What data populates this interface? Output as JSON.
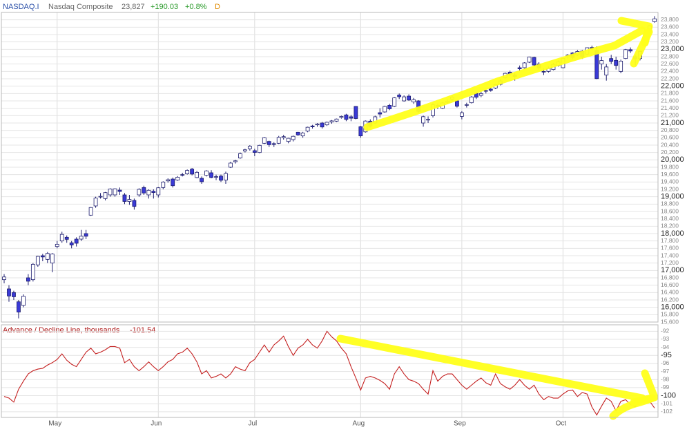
{
  "header": {
    "symbol": "NASDAQ.I",
    "name": "Nasdaq Composite",
    "last": "23,827",
    "change": "+190.03",
    "change_pct": "+0.8%",
    "period": "D"
  },
  "chart_data": [
    {
      "type": "candlestick",
      "up_color": "#ffffff",
      "down_color": "#3a3ad6",
      "edge_color": "#1c1c6e",
      "categories": [
        null,
        null,
        null,
        null,
        null,
        null,
        null,
        null,
        null,
        null,
        null,
        "May",
        null,
        null,
        null,
        null,
        null,
        null,
        null,
        null,
        null,
        null,
        null,
        null,
        null,
        null,
        null,
        null,
        null,
        null,
        null,
        null,
        "Jun",
        null,
        null,
        null,
        null,
        null,
        null,
        null,
        null,
        null,
        null,
        null,
        null,
        null,
        null,
        null,
        null,
        null,
        null,
        null,
        "Jul",
        null,
        null,
        null,
        null,
        null,
        null,
        null,
        null,
        null,
        null,
        null,
        null,
        null,
        null,
        null,
        null,
        null,
        null,
        null,
        null,
        null,
        "Aug",
        null,
        null,
        null,
        null,
        null,
        null,
        null,
        null,
        null,
        null,
        null,
        null,
        null,
        null,
        null,
        null,
        null,
        null,
        null,
        null,
        "Sep",
        null,
        null,
        null,
        null,
        null,
        null,
        null,
        null,
        null,
        null,
        null,
        null,
        null,
        null,
        null,
        null,
        null,
        null,
        null,
        null,
        "Oct",
        null,
        null,
        null,
        null,
        null,
        null,
        null,
        null,
        null,
        null,
        null,
        null,
        null,
        null,
        null,
        null,
        null,
        null,
        null
      ],
      "open": [
        16750,
        16500,
        16400,
        16150,
        16050,
        16800,
        16750,
        17150,
        17400,
        17300,
        17200,
        17650,
        17800,
        17900,
        17750,
        17850,
        17850,
        18000,
        18500,
        18750,
        19000,
        18950,
        19050,
        19050,
        19180,
        19050,
        18870,
        18900,
        19050,
        19250,
        19050,
        19150,
        19050,
        19250,
        19430,
        19480,
        19450,
        19600,
        19620,
        19750,
        19520,
        19500,
        19580,
        19650,
        19540,
        19560,
        19450,
        19800,
        19950,
        20050,
        20240,
        20300,
        20250,
        20200,
        20450,
        20500,
        20440,
        20450,
        20600,
        20500,
        20550,
        20750,
        20650,
        20780,
        20920,
        20950,
        21000,
        20950,
        21030,
        21050,
        21150,
        21220,
        21170,
        21450,
        20900,
        20760,
        21050,
        21000,
        21280,
        21300,
        21480,
        21450,
        21760,
        21600,
        21730,
        21570,
        21600,
        21000,
        21080,
        21200,
        21480,
        21400,
        21560,
        21650,
        21600,
        21180,
        21480,
        21550,
        21800,
        21750,
        21880,
        21920,
        21950,
        22050,
        22230,
        22380,
        22300,
        22500,
        22500,
        22650,
        22780,
        22600,
        22400,
        22400,
        22450,
        22560,
        22500,
        22800,
        22900,
        22850,
        22950,
        22870,
        23050,
        22970,
        22600,
        22300,
        22750,
        22700,
        22400,
        22750,
        22990,
        22800,
        22750,
        23150,
        23500,
        23750
      ],
      "high": [
        16900,
        16600,
        16450,
        16200,
        16350,
        16900,
        17200,
        17400,
        17450,
        17500,
        17470,
        17800,
        18050,
        17950,
        17800,
        17900,
        18100,
        18100,
        18720,
        19000,
        19100,
        19130,
        19230,
        19230,
        19250,
        19100,
        19050,
        18950,
        19230,
        19300,
        19200,
        19200,
        19260,
        19420,
        19500,
        19520,
        19560,
        19650,
        19740,
        19780,
        19700,
        19550,
        19720,
        19720,
        19600,
        19600,
        19680,
        19950,
        20000,
        20200,
        20300,
        20400,
        20300,
        20410,
        20620,
        20520,
        20480,
        20650,
        20680,
        20600,
        20660,
        20760,
        20760,
        20900,
        20950,
        21000,
        21030,
        21040,
        21080,
        21120,
        21200,
        21250,
        21220,
        21460,
        20920,
        21070,
        21100,
        21200,
        21400,
        21470,
        21520,
        21700,
        21800,
        21750,
        21780,
        21680,
        21620,
        21200,
        21180,
        21540,
        21530,
        21580,
        21640,
        21750,
        21620,
        21320,
        21550,
        21730,
        21830,
        21850,
        21910,
        21960,
        22060,
        22180,
        22370,
        22420,
        22350,
        22560,
        22650,
        22800,
        22800,
        22650,
        22480,
        22530,
        22630,
        22700,
        22770,
        22870,
        22920,
        22980,
        22980,
        23050,
        23100,
        23080,
        22800,
        22600,
        22850,
        22800,
        22720,
        23010,
        23050,
        22850,
        22960,
        23250,
        23650,
        23900
      ],
      "low": [
        16650,
        16150,
        16200,
        15700,
        16000,
        16600,
        16700,
        17100,
        17250,
        17200,
        16950,
        17600,
        17750,
        17750,
        17600,
        17650,
        17800,
        17850,
        18480,
        18700,
        18950,
        18900,
        19000,
        19000,
        19050,
        18800,
        18780,
        18650,
        19000,
        19050,
        18950,
        18950,
        18980,
        19200,
        19380,
        19250,
        19430,
        19550,
        19600,
        19580,
        19500,
        19350,
        19550,
        19500,
        19450,
        19400,
        19350,
        19780,
        19900,
        20030,
        20200,
        20250,
        20100,
        20180,
        20430,
        20350,
        20350,
        20430,
        20550,
        20450,
        20500,
        20650,
        20600,
        20750,
        20850,
        20900,
        20850,
        20920,
        20980,
        21030,
        21120,
        21050,
        21050,
        21100,
        20600,
        20740,
        20880,
        20980,
        21150,
        21280,
        21350,
        21430,
        21650,
        21580,
        21600,
        21520,
        21280,
        20900,
        21000,
        21150,
        21380,
        21380,
        21520,
        21600,
        21420,
        21100,
        21420,
        21530,
        21650,
        21700,
        21800,
        21850,
        21920,
        22020,
        22200,
        22280,
        22150,
        22420,
        22480,
        22630,
        22530,
        22450,
        22300,
        22370,
        22430,
        22530,
        22480,
        22750,
        22730,
        22820,
        22740,
        22850,
        22980,
        22190,
        22450,
        22150,
        22600,
        22450,
        22350,
        22730,
        22900,
        22560,
        22700,
        23100,
        23480,
        23720
      ],
      "close": [
        16823,
        16307,
        16286,
        15870,
        16300,
        16708,
        17166,
        17383,
        17366,
        17461,
        17446,
        17710,
        17978,
        17844,
        17690,
        17738,
        17929,
        17928,
        18708,
        18963,
        19010,
        19112,
        19211,
        19215,
        19143,
        18872,
        18926,
        18737,
        19200,
        19101,
        19175,
        19114,
        19243,
        19399,
        19461,
        19299,
        19530,
        19591,
        19715,
        19615,
        19662,
        19407,
        19701,
        19521,
        19546,
        19447,
        19631,
        19913,
        19974,
        20168,
        20273,
        20370,
        20202,
        20394,
        20601,
        20413,
        20419,
        20611,
        20630,
        20586,
        20640,
        20677,
        20730,
        20885,
        20896,
        20974,
        20892,
        21020,
        21058,
        21108,
        21179,
        21098,
        21130,
        21122,
        20650,
        21053,
        20916,
        21169,
        21243,
        21450,
        21385,
        21682,
        21713,
        21710,
        21623,
        21630,
        21315,
        21172,
        21100,
        21496,
        21449,
        21544,
        21590,
        21705,
        21456,
        21280,
        21498,
        21708,
        21700,
        21799,
        21879,
        21886,
        22043,
        22141,
        22348,
        22333,
        22261,
        22470,
        22631,
        22789,
        22573,
        22497,
        22384,
        22484,
        22592,
        22660,
        22755,
        22844,
        22780,
        22941,
        22788,
        23043,
        23024,
        22204,
        22695,
        22521,
        22670,
        22562,
        22680,
        22991,
        22953,
        22740,
        22942,
        23205,
        23637,
        23827
      ],
      "ylim": [
        15600,
        24000
      ],
      "yticks": [
        {
          "value": 15600,
          "label": "15,600"
        },
        {
          "value": 15800,
          "label": "15,800"
        },
        {
          "value": 16000,
          "label": "16,000"
        },
        {
          "value": 16200,
          "label": "16,200"
        },
        {
          "value": 16400,
          "label": "16,400"
        },
        {
          "value": 16600,
          "label": "16,600"
        },
        {
          "value": 16800,
          "label": "16,800"
        },
        {
          "value": 17000,
          "label": "17,000"
        },
        {
          "value": 17200,
          "label": "17,200"
        },
        {
          "value": 17400,
          "label": "17,400"
        },
        {
          "value": 17600,
          "label": "17,600"
        },
        {
          "value": 17800,
          "label": "17,800"
        },
        {
          "value": 18000,
          "label": "18,000"
        },
        {
          "value": 18200,
          "label": "18,200"
        },
        {
          "value": 18400,
          "label": "18,400"
        },
        {
          "value": 18600,
          "label": "18,600"
        },
        {
          "value": 18800,
          "label": "18,800"
        },
        {
          "value": 19000,
          "label": "19,000"
        },
        {
          "value": 19200,
          "label": "19,200"
        },
        {
          "value": 19400,
          "label": "19,400"
        },
        {
          "value": 19600,
          "label": "19,600"
        },
        {
          "value": 19800,
          "label": "19,800"
        },
        {
          "value": 20000,
          "label": "20,000"
        },
        {
          "value": 20200,
          "label": "20,200"
        },
        {
          "value": 20400,
          "label": "20,400"
        },
        {
          "value": 20600,
          "label": "20,600"
        },
        {
          "value": 20800,
          "label": "20,800"
        },
        {
          "value": 21000,
          "label": "21,000"
        },
        {
          "value": 21200,
          "label": "21,200"
        },
        {
          "value": 21400,
          "label": "21,400"
        },
        {
          "value": 21600,
          "label": "21,600"
        },
        {
          "value": 21800,
          "label": "21,800"
        },
        {
          "value": 22000,
          "label": "22,000"
        },
        {
          "value": 22200,
          "label": "22,200"
        },
        {
          "value": 22400,
          "label": "22,400"
        },
        {
          "value": 22600,
          "label": "22,600"
        },
        {
          "value": 22800,
          "label": "22,800"
        },
        {
          "value": 23000,
          "label": "23,000"
        },
        {
          "value": 23200,
          "label": "23,200"
        },
        {
          "value": 23400,
          "label": "23,400"
        },
        {
          "value": 23600,
          "label": "23,600"
        },
        {
          "value": 23800,
          "label": "23,800"
        }
      ],
      "grid": true
    },
    {
      "type": "line",
      "title": "Advance / Decline Line, thousands",
      "last_label": "-101.54",
      "color": "#c42020",
      "values": [
        -100.1,
        -100.3,
        -100.8,
        -99.2,
        -98.2,
        -97.3,
        -96.9,
        -96.7,
        -96.6,
        -96.2,
        -95.9,
        -95.5,
        -94.8,
        -95.6,
        -96.1,
        -96.4,
        -95.5,
        -94.6,
        -94.1,
        -94.8,
        -94.6,
        -94.3,
        -93.9,
        -93.9,
        -94.1,
        -95.9,
        -95.5,
        -96.4,
        -96.9,
        -96.4,
        -95.8,
        -96.4,
        -96.9,
        -96.4,
        -95.8,
        -95.5,
        -94.8,
        -94.6,
        -94.1,
        -94.8,
        -95.8,
        -97.3,
        -96.9,
        -97.8,
        -97.6,
        -97.3,
        -97.8,
        -97.3,
        -96.4,
        -96.7,
        -96.9,
        -95.9,
        -95.5,
        -94.6,
        -93.7,
        -94.6,
        -93.7,
        -93.2,
        -92.6,
        -93.9,
        -95.0,
        -94.1,
        -93.7,
        -93.0,
        -93.7,
        -94.1,
        -93.2,
        -92.0,
        -92.7,
        -93.2,
        -94.1,
        -94.8,
        -96.4,
        -97.8,
        -99.3,
        -97.8,
        -97.6,
        -97.8,
        -98.1,
        -98.5,
        -99.2,
        -97.3,
        -96.4,
        -97.3,
        -98.0,
        -98.2,
        -98.5,
        -99.2,
        -99.8,
        -96.9,
        -98.2,
        -97.6,
        -97.3,
        -97.3,
        -98.0,
        -98.7,
        -99.2,
        -98.7,
        -98.2,
        -97.8,
        -98.4,
        -98.7,
        -97.3,
        -98.5,
        -98.9,
        -99.2,
        -98.7,
        -98.0,
        -98.7,
        -99.2,
        -98.7,
        -99.8,
        -100.5,
        -100.1,
        -100.3,
        -100.3,
        -99.8,
        -99.4,
        -99.3,
        -100.1,
        -99.6,
        -99.8,
        -101.4,
        -102.4,
        -101.3,
        -100.3,
        -100.7,
        -101.9,
        -100.7,
        -100.5,
        -101.1,
        -101.4,
        -100.5,
        -100.2,
        -100.7,
        -101.54
      ],
      "ylim": [
        -102.7,
        -91.2
      ],
      "yticks": [
        -92,
        -93,
        -94,
        -95,
        -96,
        -97,
        -98,
        -99,
        -100,
        -101,
        -102
      ],
      "grid": true
    }
  ]
}
